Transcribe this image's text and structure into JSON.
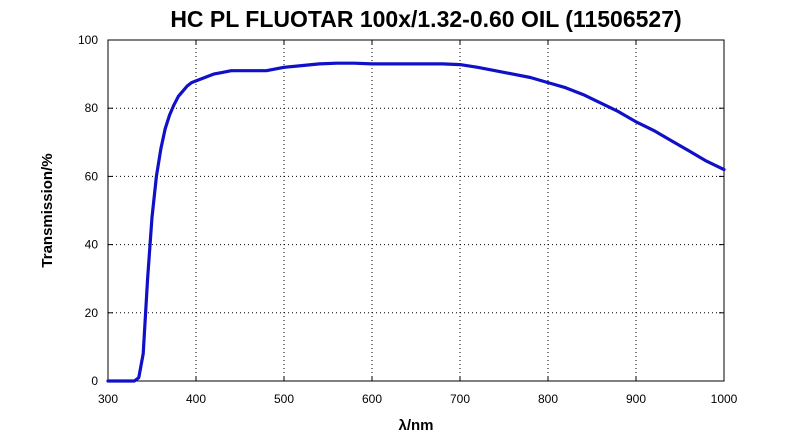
{
  "chart_data": {
    "type": "line",
    "title": "HC PL FLUOTAR 100x/1.32-0.60 OIL (11506527)",
    "xlabel": "λ/nm",
    "ylabel": "Transmission/%",
    "xlim": [
      300,
      1000
    ],
    "ylim": [
      0,
      100
    ],
    "xticks": [
      300,
      400,
      500,
      600,
      700,
      800,
      900,
      1000
    ],
    "yticks": [
      0,
      20,
      40,
      60,
      80,
      100
    ],
    "grid": true,
    "series": [
      {
        "color": "#1010c8",
        "x": [
          300,
          310,
          320,
          330,
          335,
          340,
          345,
          350,
          355,
          360,
          365,
          370,
          375,
          380,
          385,
          390,
          395,
          400,
          410,
          420,
          430,
          440,
          460,
          480,
          500,
          520,
          540,
          560,
          580,
          600,
          620,
          640,
          660,
          680,
          700,
          720,
          740,
          760,
          780,
          800,
          820,
          840,
          860,
          880,
          900,
          920,
          940,
          960,
          980,
          1000
        ],
        "y": [
          0,
          0,
          0,
          0,
          1,
          8,
          30,
          48,
          60,
          68,
          74,
          78,
          81,
          83.5,
          85,
          86.5,
          87.5,
          88,
          89,
          90,
          90.5,
          91,
          91,
          91,
          92,
          92.5,
          93,
          93.2,
          93.2,
          93,
          93,
          93,
          93,
          93,
          92.8,
          92,
          91,
          90,
          89,
          87.5,
          86,
          84,
          81.5,
          79,
          76,
          73.5,
          70.5,
          67.5,
          64.5,
          62
        ]
      }
    ]
  }
}
